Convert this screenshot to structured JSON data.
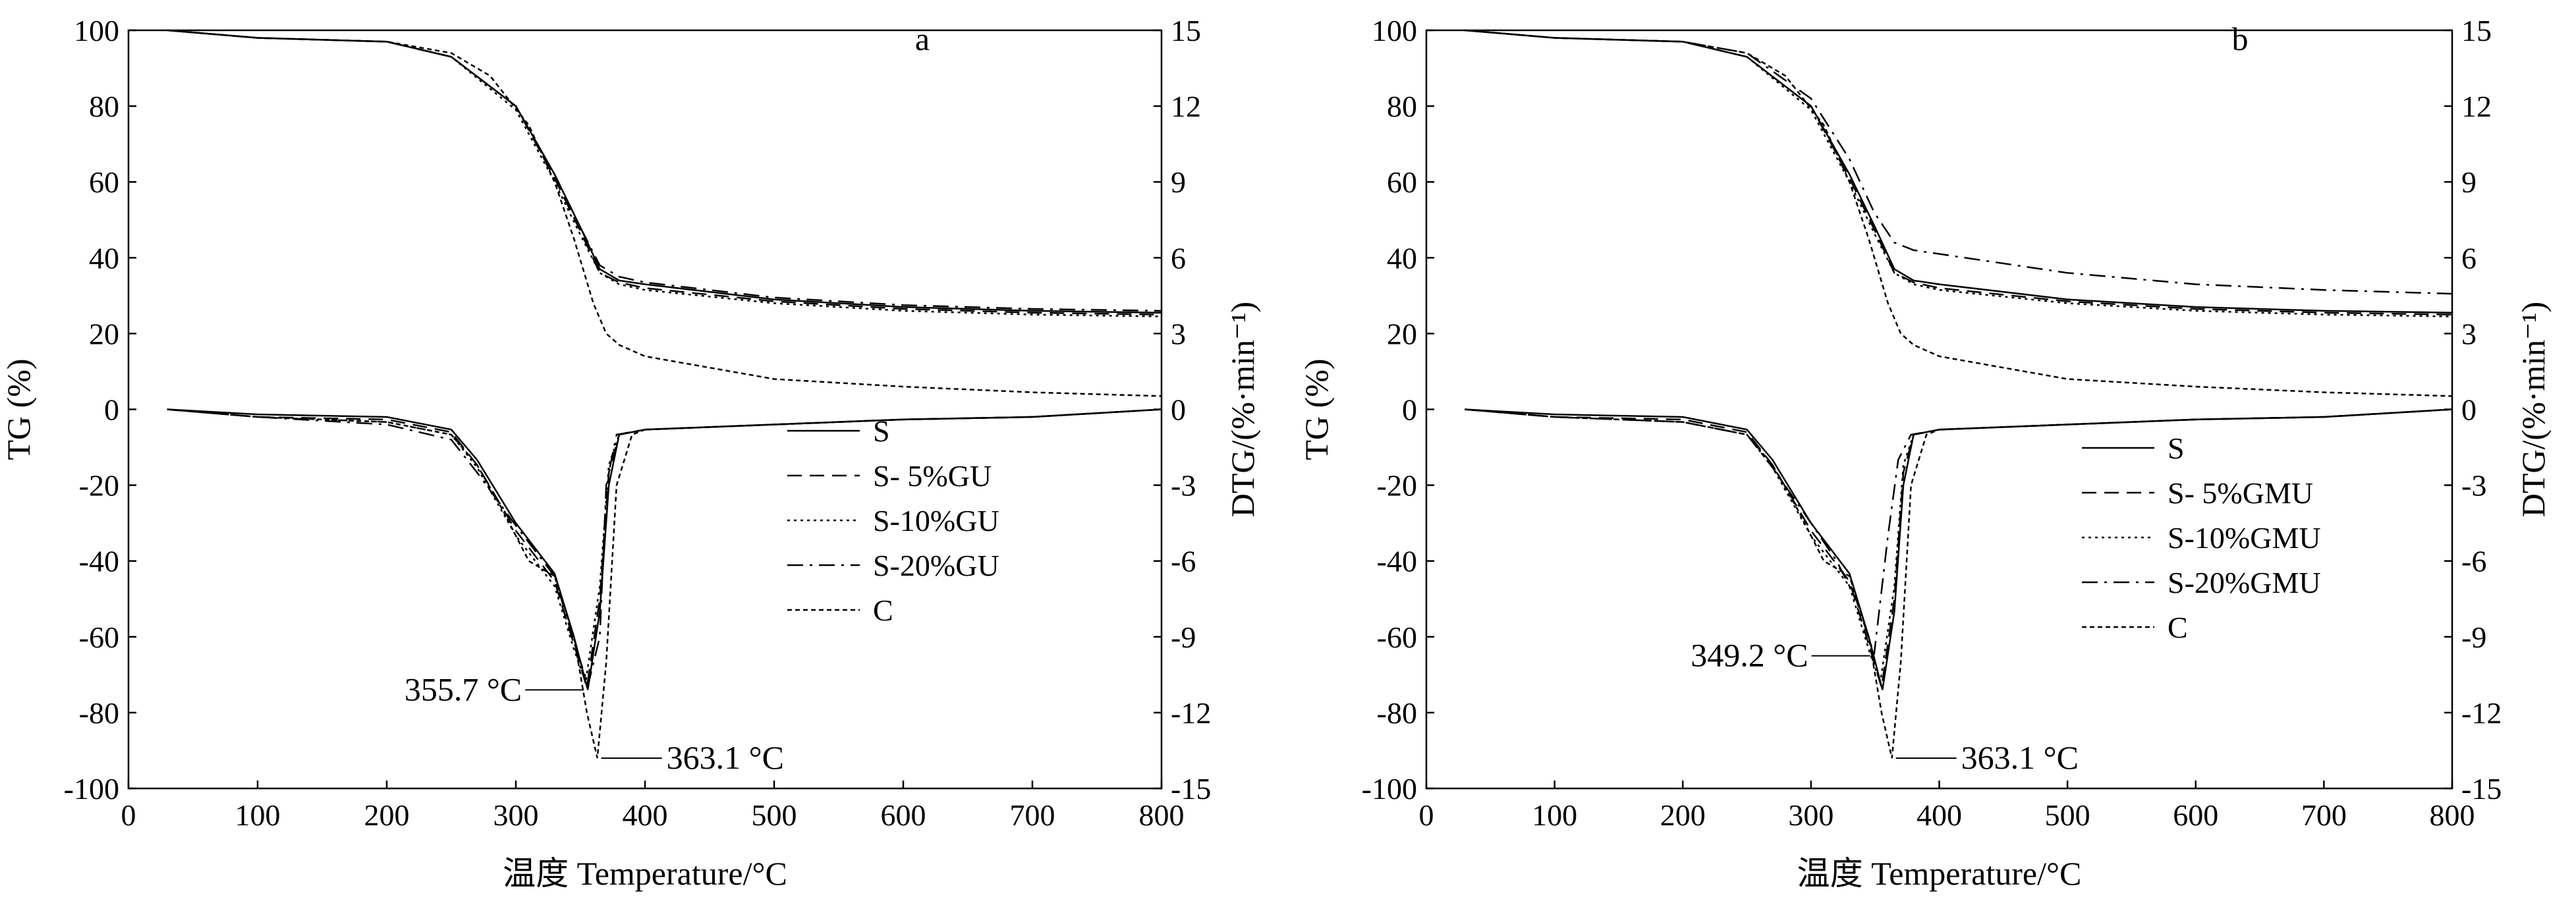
{
  "chart_data": [
    {
      "type": "line",
      "panel_letter": "a",
      "xlabel": "温度  Temperature/°C",
      "ylabel": "TG (%)",
      "y2label": "DTG/(%·min⁻¹)",
      "xlim": [
        0,
        800
      ],
      "ylim": [
        -100,
        100
      ],
      "y2lim": [
        -15,
        15
      ],
      "xticks": [
        0,
        100,
        200,
        300,
        400,
        500,
        600,
        700,
        800
      ],
      "yticks": [
        -100,
        -80,
        -60,
        -40,
        -20,
        0,
        20,
        40,
        60,
        80,
        100
      ],
      "y2ticks": [
        -15,
        -12,
        -9,
        -6,
        -3,
        0,
        3,
        6,
        9,
        12,
        15
      ],
      "grid": false,
      "legend_position": "bottom-right",
      "legend": [
        "S",
        "S- 5%GU",
        "S-10%GU",
        "S-20%GU",
        "C"
      ],
      "annotations": [
        {
          "text": "355.7 °C",
          "x": 355.7,
          "y": -74
        },
        {
          "text": "363.1 °C",
          "x": 363.1,
          "y": -92
        }
      ],
      "series": [
        {
          "name": "S",
          "style": "solid",
          "tg_x": [
            30,
            100,
            200,
            250,
            300,
            330,
            350,
            365,
            380,
            400,
            500,
            600,
            700,
            800
          ],
          "tg_y": [
            100,
            98,
            97,
            93,
            80,
            62,
            48,
            37,
            34,
            33,
            29,
            27,
            26,
            25.5
          ],
          "dtg_x": [
            30,
            100,
            200,
            250,
            270,
            300,
            330,
            345,
            355.7,
            365,
            372,
            380,
            400,
            500,
            600,
            700,
            800
          ],
          "dtg_y": [
            0,
            -0.2,
            -0.3,
            -0.8,
            -2,
            -4.5,
            -6.5,
            -9,
            -11.1,
            -8,
            -3,
            -1,
            -0.8,
            -0.6,
            -0.4,
            -0.3,
            0
          ]
        },
        {
          "name": "S- 5%GU",
          "style": "dashed",
          "tg_x": [
            30,
            100,
            200,
            250,
            300,
            330,
            350,
            365,
            380,
            400,
            500,
            600,
            700,
            800
          ],
          "tg_y": [
            100,
            98,
            97,
            93,
            80,
            61,
            47,
            36,
            33.5,
            32,
            28.5,
            26.5,
            25.5,
            25
          ],
          "dtg_x": [
            30,
            100,
            200,
            250,
            270,
            300,
            330,
            345,
            355,
            365,
            372,
            380,
            400,
            500,
            600,
            700,
            800
          ],
          "dtg_y": [
            0,
            -0.3,
            -0.4,
            -0.9,
            -2.2,
            -4.8,
            -6.8,
            -9.3,
            -11,
            -7.5,
            -2.5,
            -1,
            -0.8,
            -0.6,
            -0.4,
            -0.3,
            0
          ]
        },
        {
          "name": "S-10%GU",
          "style": "dotted",
          "tg_x": [
            30,
            100,
            200,
            250,
            300,
            330,
            350,
            365,
            380,
            400,
            500,
            600,
            700,
            800
          ],
          "tg_y": [
            100,
            98,
            97,
            93,
            79,
            60,
            46,
            36,
            33,
            31.5,
            28,
            26,
            25,
            24.5
          ],
          "dtg_x": [
            30,
            100,
            200,
            250,
            270,
            300,
            330,
            345,
            354,
            365,
            372,
            380,
            400,
            500,
            600,
            700,
            800
          ],
          "dtg_y": [
            0,
            -0.3,
            -0.5,
            -1,
            -2.3,
            -5,
            -7,
            -9.5,
            -10.8,
            -7,
            -2.2,
            -1,
            -0.8,
            -0.6,
            -0.4,
            -0.3,
            0
          ]
        },
        {
          "name": "S-20%GU",
          "style": "dashdot",
          "tg_x": [
            30,
            100,
            200,
            250,
            300,
            330,
            350,
            365,
            380,
            400,
            500,
            600,
            700,
            800
          ],
          "tg_y": [
            100,
            98,
            97,
            93,
            80,
            62,
            48,
            38,
            35,
            33.5,
            29.5,
            27.5,
            26.5,
            26
          ],
          "dtg_x": [
            30,
            100,
            200,
            250,
            270,
            300,
            330,
            345,
            356,
            365,
            370,
            378,
            400,
            500,
            600,
            700,
            800
          ],
          "dtg_y": [
            0,
            -0.3,
            -0.6,
            -1.2,
            -2.5,
            -4.6,
            -6.6,
            -9.2,
            -10.9,
            -9,
            -3,
            -1,
            -0.8,
            -0.6,
            -0.4,
            -0.3,
            0
          ]
        },
        {
          "name": "C",
          "style": "finedot",
          "tg_x": [
            30,
            100,
            200,
            250,
            280,
            310,
            330,
            345,
            360,
            370,
            380,
            400,
            500,
            600,
            700,
            800
          ],
          "tg_y": [
            100,
            98,
            97,
            94,
            88,
            75,
            60,
            45,
            28,
            20,
            17,
            14,
            8,
            6,
            4.5,
            3.5
          ],
          "dtg_x": [
            30,
            100,
            200,
            250,
            270,
            290,
            310,
            330,
            345,
            355,
            363.1,
            370,
            378,
            390,
            400,
            500,
            600,
            700,
            800
          ],
          "dtg_y": [
            0,
            -0.3,
            -0.5,
            -1,
            -2.2,
            -4,
            -6,
            -6.6,
            -9,
            -12,
            -13.8,
            -10,
            -3,
            -1,
            -0.8,
            -0.6,
            -0.4,
            -0.3,
            0
          ]
        }
      ]
    },
    {
      "type": "line",
      "panel_letter": "b",
      "xlabel": "温度  Temperature/°C",
      "ylabel": "TG (%)",
      "y2label": "DTG/(%·min⁻¹)",
      "xlim": [
        0,
        800
      ],
      "ylim": [
        -100,
        100
      ],
      "y2lim": [
        -15,
        15
      ],
      "xticks": [
        0,
        100,
        200,
        300,
        400,
        500,
        600,
        700,
        800
      ],
      "yticks": [
        -100,
        -80,
        -60,
        -40,
        -20,
        0,
        20,
        40,
        60,
        80,
        100
      ],
      "y2ticks": [
        -15,
        -12,
        -9,
        -6,
        -3,
        0,
        3,
        6,
        9,
        12,
        15
      ],
      "grid": false,
      "legend_position": "bottom-right",
      "legend": [
        "S",
        "S- 5%GMU",
        "S-10%GMU",
        "S-20%GMU",
        "C"
      ],
      "annotations": [
        {
          "text": "349.2 °C",
          "x": 349.2,
          "y": -65
        },
        {
          "text": "363.1 °C",
          "x": 363.1,
          "y": -92
        }
      ],
      "series": [
        {
          "name": "S",
          "style": "solid",
          "tg_x": [
            30,
            100,
            200,
            250,
            300,
            330,
            350,
            365,
            380,
            400,
            500,
            600,
            700,
            800
          ],
          "tg_y": [
            100,
            98,
            97,
            93,
            80,
            62,
            48,
            37,
            34,
            33,
            29,
            27,
            26,
            25.5
          ],
          "dtg_x": [
            30,
            100,
            200,
            250,
            270,
            300,
            330,
            345,
            355.7,
            365,
            372,
            380,
            400,
            500,
            600,
            700,
            800
          ],
          "dtg_y": [
            0,
            -0.2,
            -0.3,
            -0.8,
            -2,
            -4.5,
            -6.5,
            -9,
            -11.1,
            -8,
            -3,
            -1,
            -0.8,
            -0.6,
            -0.4,
            -0.3,
            0
          ]
        },
        {
          "name": "S- 5%GMU",
          "style": "dashed",
          "tg_x": [
            30,
            100,
            200,
            250,
            300,
            330,
            350,
            365,
            380,
            400,
            500,
            600,
            700,
            800
          ],
          "tg_y": [
            100,
            98,
            97,
            93,
            80,
            61,
            47,
            36,
            33.5,
            32,
            28.5,
            26.5,
            25.5,
            25
          ],
          "dtg_x": [
            30,
            100,
            200,
            250,
            270,
            300,
            330,
            345,
            355,
            365,
            372,
            380,
            400,
            500,
            600,
            700,
            800
          ],
          "dtg_y": [
            0,
            -0.3,
            -0.4,
            -0.9,
            -2.2,
            -4.8,
            -6.8,
            -9.3,
            -11,
            -7.5,
            -2.5,
            -1,
            -0.8,
            -0.6,
            -0.4,
            -0.3,
            0
          ]
        },
        {
          "name": "S-10%GMU",
          "style": "dotted",
          "tg_x": [
            30,
            100,
            200,
            250,
            300,
            330,
            350,
            365,
            380,
            400,
            500,
            600,
            700,
            800
          ],
          "tg_y": [
            100,
            98,
            97,
            93,
            79,
            60,
            46,
            36,
            33,
            31.5,
            28,
            26,
            25,
            24.5
          ],
          "dtg_x": [
            30,
            100,
            200,
            250,
            270,
            300,
            330,
            345,
            354,
            365,
            372,
            380,
            400,
            500,
            600,
            700,
            800
          ],
          "dtg_y": [
            0,
            -0.3,
            -0.5,
            -1,
            -2.3,
            -5,
            -7,
            -9.5,
            -10.8,
            -7,
            -2.2,
            -1,
            -0.8,
            -0.6,
            -0.4,
            -0.3,
            0
          ]
        },
        {
          "name": "S-20%GMU",
          "style": "dashdot",
          "tg_x": [
            30,
            100,
            200,
            250,
            300,
            330,
            349.2,
            365,
            380,
            400,
            500,
            600,
            700,
            800
          ],
          "tg_y": [
            100,
            98,
            97,
            94,
            82,
            66,
            52,
            44,
            42,
            41,
            36,
            33,
            31.5,
            30.5
          ],
          "dtg_x": [
            30,
            100,
            200,
            250,
            270,
            300,
            320,
            335,
            349.2,
            360,
            368,
            378,
            400,
            500,
            600,
            700,
            800
          ],
          "dtg_y": [
            0,
            -0.3,
            -0.5,
            -1,
            -2.3,
            -4.5,
            -6,
            -7.5,
            -9.7,
            -5,
            -2,
            -1,
            -0.8,
            -0.6,
            -0.4,
            -0.3,
            0
          ]
        },
        {
          "name": "C",
          "style": "finedot",
          "tg_x": [
            30,
            100,
            200,
            250,
            280,
            310,
            330,
            345,
            360,
            370,
            380,
            400,
            500,
            600,
            700,
            800
          ],
          "tg_y": [
            100,
            98,
            97,
            94,
            88,
            75,
            60,
            45,
            28,
            20,
            17,
            14,
            8,
            6,
            4.5,
            3.5
          ],
          "dtg_x": [
            30,
            100,
            200,
            250,
            270,
            290,
            310,
            330,
            345,
            355,
            363.1,
            370,
            378,
            390,
            400,
            500,
            600,
            700,
            800
          ],
          "dtg_y": [
            0,
            -0.3,
            -0.5,
            -1,
            -2.2,
            -4,
            -6,
            -6.6,
            -9,
            -12,
            -13.8,
            -10,
            -3,
            -1,
            -0.8,
            -0.6,
            -0.4,
            -0.3,
            0
          ]
        }
      ]
    }
  ]
}
